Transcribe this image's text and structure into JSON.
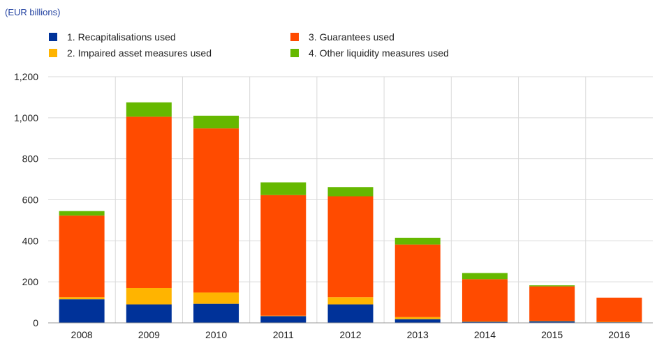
{
  "unit_label": "(EUR billions)",
  "colors": {
    "recap": "#003299",
    "impaired": "#ffb400",
    "guarantees": "#ff4b00",
    "liquidity": "#65b800",
    "grid": "#d9d9d9",
    "axis": "#999999"
  },
  "chart_data": {
    "type": "bar",
    "stacked": true,
    "categories": [
      "2008",
      "2009",
      "2010",
      "2011",
      "2012",
      "2013",
      "2014",
      "2015",
      "2016"
    ],
    "series": [
      {
        "name": "1. Recapitalisations used",
        "color": "#003299",
        "values": [
          115,
          90,
          93,
          33,
          90,
          18,
          5,
          8,
          3
        ]
      },
      {
        "name": "2. Impaired asset measures used",
        "color": "#ffb400",
        "values": [
          10,
          80,
          55,
          2,
          35,
          10,
          2,
          2,
          2
        ]
      },
      {
        "name": "3. Guarantees used",
        "color": "#ff4b00",
        "values": [
          398,
          835,
          800,
          588,
          492,
          354,
          206,
          168,
          118
        ]
      },
      {
        "name": "4. Other liquidity measures used",
        "color": "#65b800",
        "values": [
          22,
          70,
          62,
          62,
          45,
          33,
          30,
          5,
          0
        ]
      }
    ],
    "ylim": [
      0,
      1200
    ],
    "yticks": [
      0,
      200,
      400,
      600,
      800,
      1000,
      1200
    ],
    "ytick_labels": [
      "0",
      "200",
      "400",
      "600",
      "800",
      "1,000",
      "1,200"
    ],
    "grid": true,
    "legend_position": "top"
  }
}
